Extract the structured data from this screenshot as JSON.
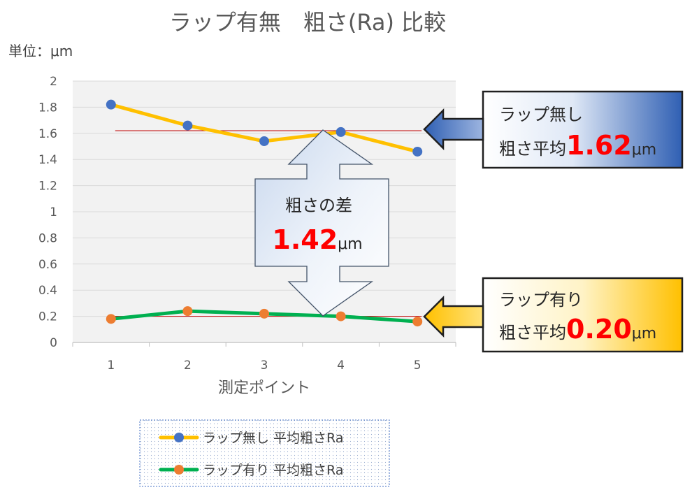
{
  "chart_data": {
    "type": "line",
    "title": "ラップ有無　粗さ(Ra) 比較",
    "unit_label": "単位：μm",
    "xlabel": "測定ポイント",
    "categories": [
      "1",
      "2",
      "3",
      "4",
      "5"
    ],
    "ylim": [
      0,
      2
    ],
    "yticks": [
      "0",
      "0.2",
      "0.4",
      "0.6",
      "0.8",
      "1",
      "1.2",
      "1.4",
      "1.6",
      "1.8",
      "2"
    ],
    "grid": true,
    "legend_position": "bottom",
    "series": [
      {
        "name": "ラップ無し 平均粗さRa",
        "values": [
          1.82,
          1.66,
          1.54,
          1.61,
          1.46
        ],
        "line_color": "#FFC000",
        "marker_color": "#4472C4",
        "average": 1.62
      },
      {
        "name": "ラップ有り 平均粗さRa",
        "values": [
          0.18,
          0.24,
          0.22,
          0.2,
          0.16
        ],
        "line_color": "#00B050",
        "marker_color": "#ED7D31",
        "average": 0.2
      }
    ],
    "average_line_color": "#C00000"
  },
  "callouts": {
    "without": {
      "line1": "ラップ無し",
      "prefix": "粗さ平均",
      "value": "1.62",
      "unit": "μm"
    },
    "with": {
      "line1": "ラップ有り",
      "prefix": "粗さ平均",
      "value": "0.20",
      "unit": "μm"
    },
    "diff": {
      "line1": "粗さの差",
      "value": "1.42",
      "unit": "μm"
    }
  }
}
